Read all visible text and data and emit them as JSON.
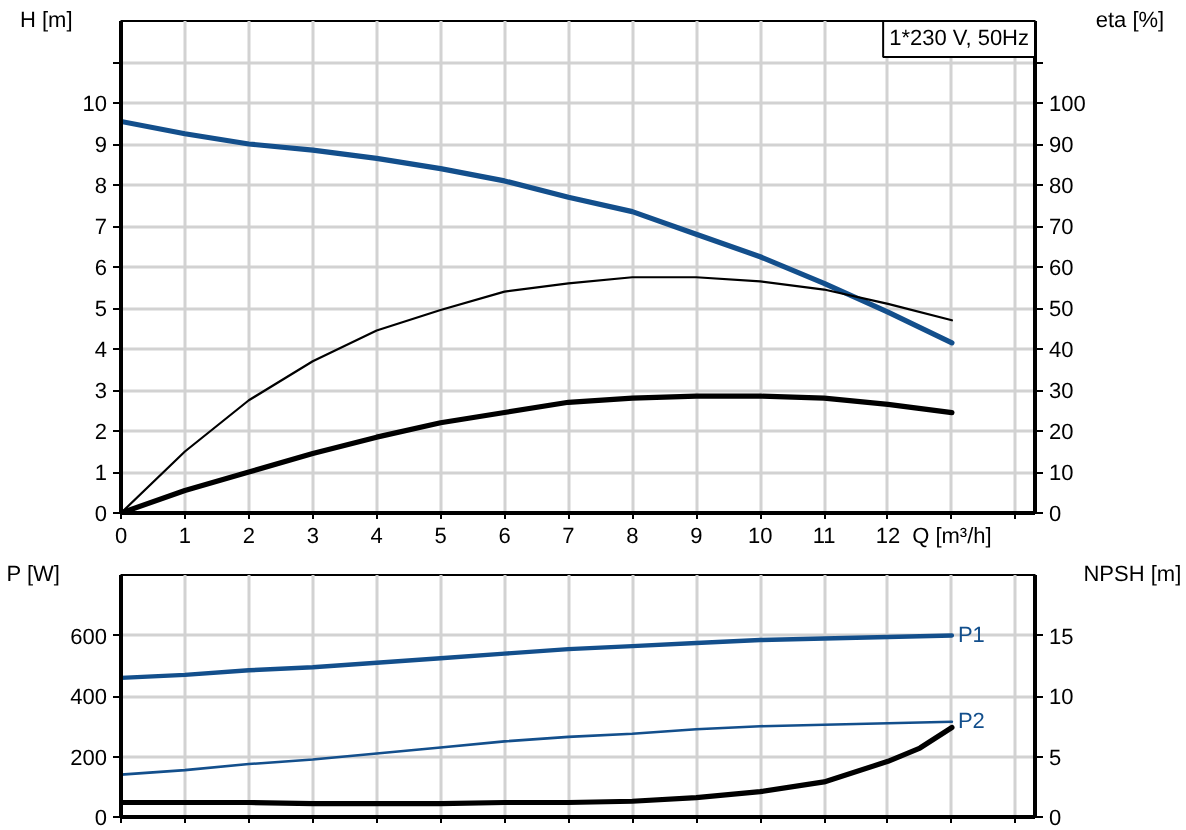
{
  "chart_data": [
    {
      "type": "line",
      "title": "1*230 V, 50Hz",
      "ylabel": "H [m]",
      "y2label": "eta [%]",
      "x": [
        0,
        1,
        2,
        3,
        4,
        5,
        6,
        7,
        8,
        9,
        10,
        11,
        12,
        13
      ],
      "xlim": [
        0,
        14.3
      ],
      "xticks": [
        0,
        1,
        2,
        3,
        4,
        5,
        6,
        7,
        8,
        9,
        10,
        11,
        12,
        {
          "value": 13,
          "label": "Q [m³/h]"
        },
        {
          "value": 14,
          "label": null
        }
      ],
      "ylim": [
        0,
        12
      ],
      "yticks": [
        0,
        1,
        2,
        3,
        4,
        5,
        6,
        7,
        8,
        9,
        10,
        {
          "value": 11,
          "label": null
        }
      ],
      "y2lim": [
        0,
        120
      ],
      "y2ticks": [
        0,
        10,
        20,
        30,
        40,
        50,
        60,
        70,
        80,
        90,
        100,
        {
          "value": 110,
          "label": null
        }
      ],
      "grid": true,
      "series": [
        {
          "color": "#134f8c",
          "values": [
            9.55,
            9.25,
            9.0,
            8.85,
            8.65,
            8.4,
            8.1,
            7.7,
            7.35,
            6.8,
            6.25,
            5.6,
            4.9,
            4.15
          ]
        },
        {
          "color": "#000000",
          "axis": "y2",
          "values": [
            0,
            15,
            27.5,
            37,
            44.5,
            49.5,
            54,
            56,
            57.5,
            57.5,
            56.5,
            54.5,
            51,
            47
          ]
        },
        {
          "color": "#000000",
          "axis": "y2",
          "values": [
            0,
            5.5,
            10,
            14.5,
            18.5,
            22,
            24.5,
            27,
            28,
            28.5,
            28.5,
            28,
            26.5,
            24.5
          ]
        }
      ]
    },
    {
      "type": "line",
      "ylabel": "P [W]",
      "y2label": "NPSH [m]",
      "x": [
        0,
        1,
        2,
        3,
        4,
        5,
        6,
        7,
        8,
        9,
        10,
        11,
        12,
        13
      ],
      "xlim": [
        0,
        14.3
      ],
      "xticks": [
        0,
        1,
        2,
        3,
        4,
        5,
        6,
        7,
        8,
        9,
        10,
        11,
        12,
        13,
        14
      ],
      "ylim": [
        0,
        800
      ],
      "yticks": [
        0,
        200,
        400,
        600
      ],
      "y2lim": [
        0,
        20
      ],
      "y2ticks": [
        0,
        5,
        10,
        15
      ],
      "grid": true,
      "tick_labels": "y",
      "series": [
        {
          "name": "P1",
          "color": "#134f8c",
          "values": [
            460,
            470,
            485,
            495,
            510,
            525,
            540,
            555,
            565,
            575,
            585,
            590,
            595,
            600
          ]
        },
        {
          "name": "P2",
          "color": "#134f8c",
          "values": [
            140,
            155,
            175,
            190,
            210,
            230,
            250,
            265,
            275,
            290,
            300,
            305,
            310,
            315
          ]
        },
        {
          "color": "#000000",
          "axis": "y2",
          "x": [
            0,
            1,
            2,
            3,
            4,
            5,
            6,
            7,
            8,
            9,
            10,
            11,
            12,
            12.5,
            13
          ],
          "values": [
            1.2,
            1.2,
            1.2,
            1.1,
            1.1,
            1.1,
            1.2,
            1.2,
            1.3,
            1.6,
            2.1,
            2.9,
            4.6,
            5.7,
            7.4
          ]
        }
      ]
    }
  ]
}
